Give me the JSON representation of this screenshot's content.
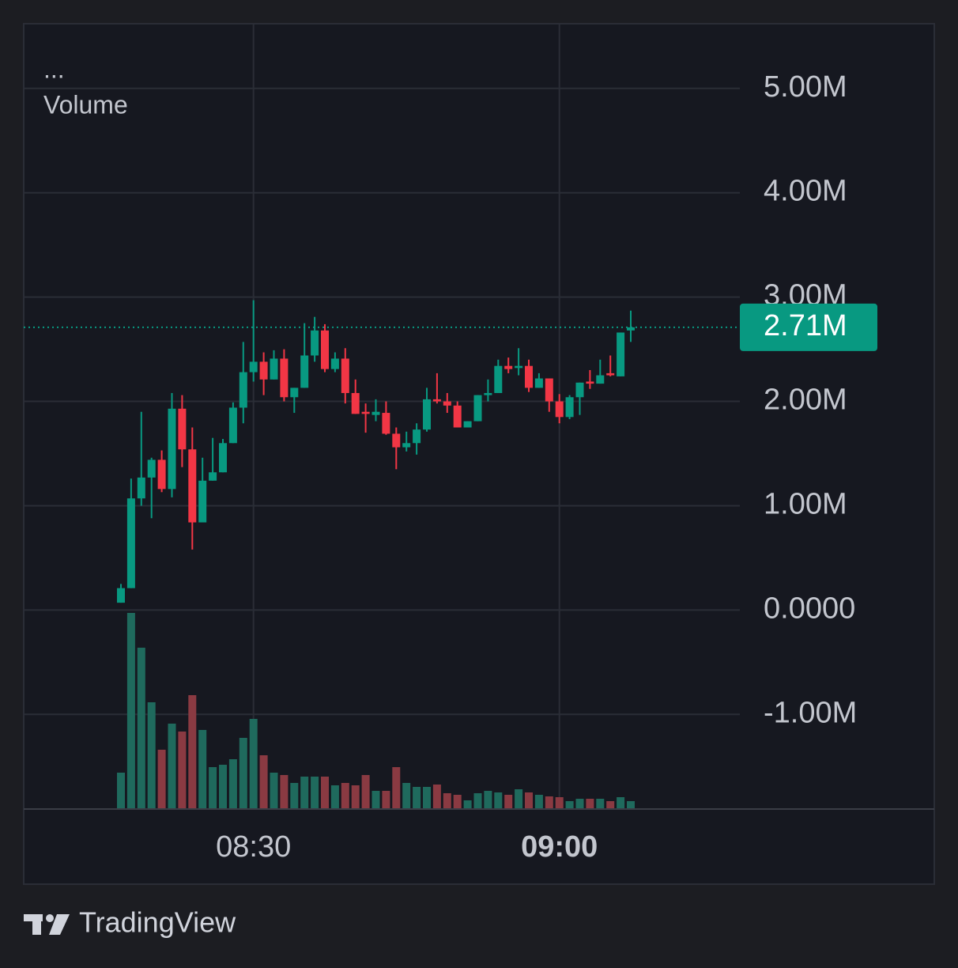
{
  "chart_data": {
    "type": "candlestick",
    "indicator_menu": "...",
    "indicator": "Volume",
    "x": [
      "08:17",
      "08:18",
      "08:19",
      "08:20",
      "08:21",
      "08:22",
      "08:23",
      "08:24",
      "08:25",
      "08:26",
      "08:27",
      "08:28",
      "08:29",
      "08:30",
      "08:31",
      "08:32",
      "08:33",
      "08:34",
      "08:35",
      "08:36",
      "08:37",
      "08:38",
      "08:39",
      "08:40",
      "08:41",
      "08:42",
      "08:43",
      "08:44",
      "08:45",
      "08:46",
      "08:47",
      "08:48",
      "08:49",
      "08:50",
      "08:51",
      "08:52",
      "08:53",
      "08:54",
      "08:55",
      "08:56",
      "08:57",
      "08:58",
      "08:59",
      "09:00",
      "09:01",
      "09:02",
      "09:03",
      "09:04",
      "09:05",
      "09:06",
      "09:07"
    ],
    "open": [
      70000,
      210000,
      1070000,
      1270000,
      1440000,
      1160000,
      1930000,
      1540000,
      840000,
      1240000,
      1320000,
      1600000,
      1940000,
      2280000,
      2380000,
      2210000,
      2410000,
      2040000,
      2130000,
      2440000,
      2680000,
      2310000,
      2410000,
      2080000,
      1900000,
      1870000,
      1890000,
      1690000,
      1560000,
      1600000,
      1730000,
      2020000,
      2000000,
      1960000,
      1750000,
      1810000,
      2060000,
      2080000,
      2340000,
      2320000,
      2340000,
      2130000,
      2220000,
      2000000,
      1850000,
      2040000,
      2190000,
      2170000,
      2270000,
      2240000,
      2680000
    ],
    "high": [
      250000,
      1260000,
      1900000,
      1460000,
      1530000,
      2080000,
      2060000,
      1750000,
      1460000,
      1650000,
      1640000,
      1990000,
      2570000,
      2970000,
      2470000,
      2490000,
      2500000,
      2130000,
      2750000,
      2810000,
      2740000,
      2470000,
      2510000,
      2210000,
      1980000,
      2020000,
      2000000,
      1750000,
      1710000,
      1790000,
      2130000,
      2270000,
      2080000,
      2000000,
      1810000,
      2060000,
      2210000,
      2400000,
      2420000,
      2510000,
      2400000,
      2270000,
      2220000,
      2070000,
      2060000,
      2180000,
      2300000,
      2400000,
      2440000,
      2660000,
      2870000
    ],
    "low": [
      70000,
      210000,
      1000000,
      880000,
      1130000,
      1080000,
      1370000,
      580000,
      840000,
      1240000,
      1320000,
      1600000,
      1790000,
      2190000,
      2060000,
      2210000,
      2000000,
      1890000,
      2130000,
      2380000,
      2280000,
      2280000,
      1980000,
      1880000,
      1700000,
      1810000,
      1680000,
      1350000,
      1520000,
      1490000,
      1710000,
      1980000,
      1890000,
      1750000,
      1750000,
      1810000,
      2000000,
      2080000,
      2270000,
      2250000,
      2090000,
      2130000,
      1900000,
      1790000,
      1830000,
      1870000,
      2120000,
      2170000,
      2240000,
      2240000,
      2570000
    ],
    "close": [
      210000,
      1070000,
      1270000,
      1440000,
      1160000,
      1930000,
      1540000,
      840000,
      1240000,
      1320000,
      1600000,
      1940000,
      2280000,
      2380000,
      2210000,
      2410000,
      2040000,
      2130000,
      2440000,
      2680000,
      2310000,
      2410000,
      2080000,
      1880000,
      1880000,
      1900000,
      1690000,
      1560000,
      1600000,
      1730000,
      2020000,
      2000000,
      1960000,
      1750000,
      1810000,
      2060000,
      2080000,
      2340000,
      2310000,
      2340000,
      2130000,
      2220000,
      2000000,
      1850000,
      2040000,
      2180000,
      2170000,
      2250000,
      2250000,
      2660000,
      2710000
    ],
    "volume": [
      45,
      247,
      203,
      134,
      74,
      107,
      97,
      143,
      99,
      52,
      55,
      62,
      89,
      113,
      67,
      45,
      42,
      32,
      40,
      40,
      40,
      29,
      32,
      29,
      42,
      22,
      22,
      52,
      32,
      27,
      27,
      30,
      19,
      17,
      10,
      19,
      22,
      20,
      17,
      24,
      20,
      17,
      15,
      14,
      9,
      12,
      12,
      12,
      9,
      14,
      9
    ],
    "up_color": "#089981",
    "down_color": "#f23645",
    "volume_up_color": "#1f6a5d",
    "volume_down_color": "#8a3a42",
    "ylim": [
      -1900000,
      5620000
    ],
    "yticks": [
      {
        "value": 5000000,
        "label": "5.00M"
      },
      {
        "value": 4000000,
        "label": "4.00M"
      },
      {
        "value": 3000000,
        "label": "3.00M"
      },
      {
        "value": 2000000,
        "label": "2.00M"
      },
      {
        "value": 1000000,
        "label": "1.00M"
      },
      {
        "value": 0,
        "label": "0.0000"
      },
      {
        "value": -1000000,
        "label": "-1.00M"
      }
    ],
    "xticks": [
      "08:30",
      "09:00"
    ],
    "last_price": {
      "value": 2710000,
      "label": "2.71M"
    },
    "grid": true
  },
  "brand": "TradingView"
}
